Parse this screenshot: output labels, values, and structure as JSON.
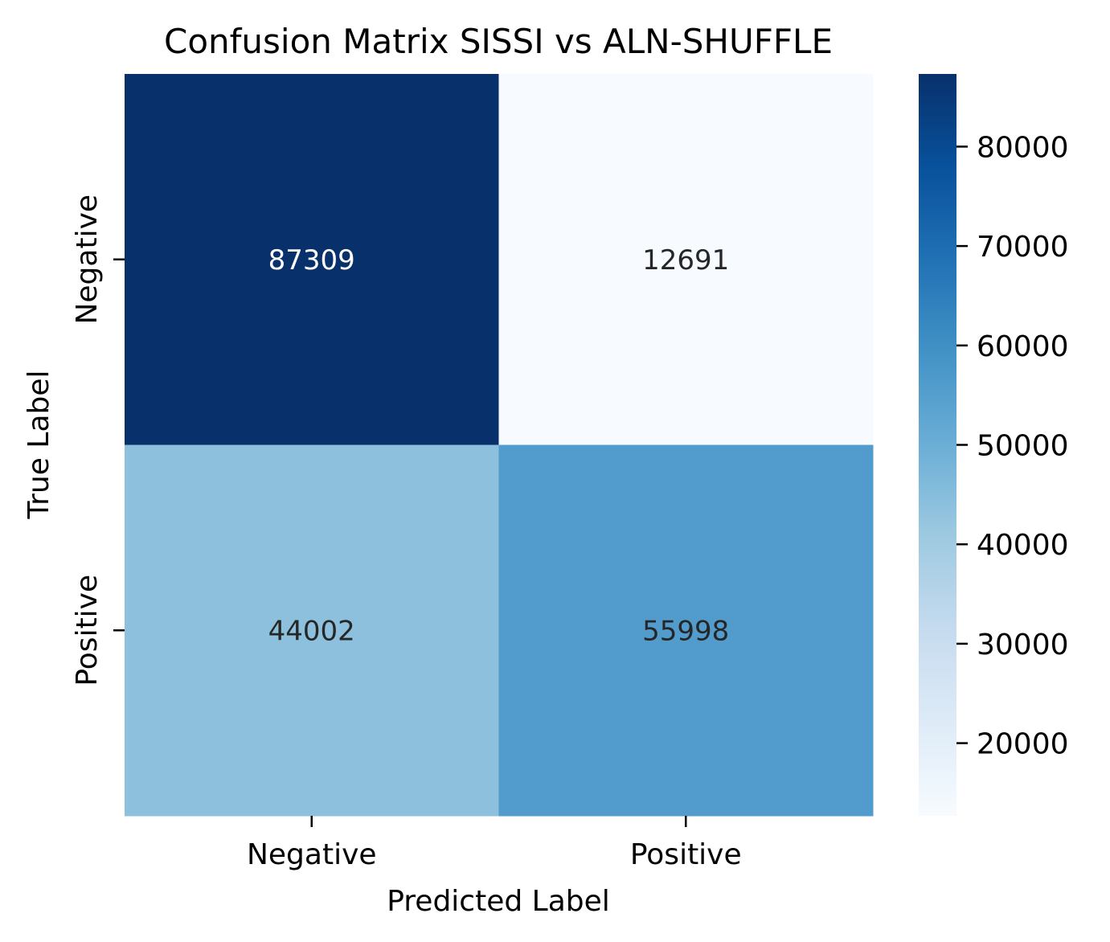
{
  "chart_data": {
    "type": "heatmap",
    "title": "Confusion Matrix SISSI vs ALN-SHUFFLE",
    "xlabel": "Predicted Label",
    "ylabel": "True Label",
    "x_categories": [
      "Negative",
      "Positive"
    ],
    "y_categories": [
      "Negative",
      "Positive"
    ],
    "values": [
      [
        87309,
        12691
      ],
      [
        44002,
        55998
      ]
    ],
    "colormap": "Blues",
    "color_range": [
      12691,
      87309
    ],
    "colorbar_ticks": [
      20000,
      30000,
      40000,
      50000,
      60000,
      70000,
      80000
    ],
    "grid": false,
    "legend": "colorbar-right"
  }
}
